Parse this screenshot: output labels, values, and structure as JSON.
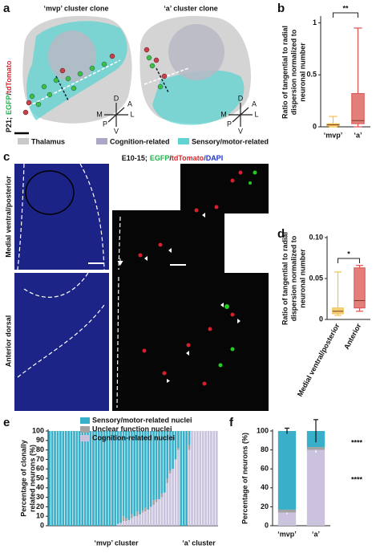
{
  "panels": {
    "a": {
      "letter": "a",
      "titles": [
        "‘mvp’ cluster clone",
        "‘a’ cluster clone"
      ],
      "stain": [
        "P21;",
        "EGFP",
        "/",
        "tdTomato"
      ],
      "compass": [
        "D",
        "A",
        "M",
        "L",
        "P",
        "V"
      ],
      "legend": [
        "Thalamus",
        "Cognition-related",
        "Sensory/motor-related"
      ]
    },
    "b": {
      "letter": "b"
    },
    "c": {
      "letter": "c",
      "stain": [
        "E10-15;",
        "EGFP",
        "/",
        "tdTomato",
        "/DAPI"
      ],
      "rows": [
        "Medial ventral/posterior",
        "Anterior dorsal"
      ]
    },
    "d": {
      "letter": "d"
    },
    "e": {
      "letter": "e"
    },
    "f": {
      "letter": "f"
    }
  },
  "chart_data": [
    {
      "type": "box",
      "y_label": [
        "Ratio of tangential to radial",
        "dispersion normalized to",
        "neuronal number"
      ],
      "categories": [
        "‘mvp’",
        "‘a’"
      ],
      "colors": [
        "#f2c14e",
        "#d9534f"
      ],
      "boxes": [
        {
          "min": 0,
          "q1": 0.01,
          "median": 0.02,
          "q3": 0.03,
          "max": 0.1
        },
        {
          "min": 0,
          "q1": 0.03,
          "median": 0.06,
          "q3": 0.32,
          "max": 0.95
        }
      ],
      "ylim": [
        0,
        1.05
      ],
      "yticks": [
        0,
        0.5,
        1
      ],
      "annotations": [
        {
          "text": "**"
        }
      ]
    },
    {
      "type": "box",
      "y_label": [
        "Ratio of tangential to radial",
        "dispersion normalized to",
        "neuronal number"
      ],
      "categories": [
        "Medial ventral/posterior",
        "Anterior"
      ],
      "colors": [
        "#f2c14e",
        "#d9534f"
      ],
      "boxes": [
        {
          "min": 0.005,
          "q1": 0.007,
          "median": 0.01,
          "q3": 0.014,
          "max": 0.058
        },
        {
          "min": 0.01,
          "q1": 0.014,
          "median": 0.023,
          "q3": 0.063,
          "max": 0.066
        }
      ],
      "ylim": [
        0,
        0.1
      ],
      "yticks": [
        0,
        0.05,
        {
          "value": 0.1,
          "label": "0.10"
        }
      ],
      "annotations": [
        {
          "text": "*"
        }
      ]
    },
    {
      "type": "stacked_bar",
      "y_label": [
        "Percentage of clonally",
        "related neurons (%)"
      ],
      "categories": [
        null,
        null,
        null,
        null,
        null,
        null,
        null,
        null,
        null,
        null,
        null,
        null,
        null,
        null,
        null,
        null,
        null,
        null,
        null,
        null,
        null,
        null,
        null,
        null,
        null,
        null,
        null,
        null,
        null,
        null,
        null,
        null,
        null,
        null,
        null,
        null,
        null,
        null,
        null,
        null,
        null,
        null,
        null,
        null,
        null,
        null,
        null,
        null,
        null,
        null,
        null,
        null,
        null,
        null,
        null,
        null,
        null,
        null,
        null,
        null,
        null,
        null
      ],
      "series": [
        {
          "name": "Cognition-related nuclei",
          "color": "#cbc3de",
          "values": [
            0,
            0,
            0,
            0,
            0,
            0,
            0,
            0,
            0,
            0,
            0,
            0,
            0,
            0,
            0,
            0,
            0,
            0,
            0,
            0,
            0,
            0,
            0,
            0,
            0,
            2,
            3,
            5,
            5,
            6,
            8,
            10,
            10,
            12,
            14,
            15,
            17,
            20,
            22,
            25,
            28,
            30,
            35,
            45,
            55,
            60,
            70,
            80,
            0,
            0,
            0,
            80,
            100,
            100,
            100,
            100,
            100,
            100,
            100,
            100,
            100,
            100
          ]
        },
        {
          "name": "Unclear function nuclei",
          "color": "#a3a3a3",
          "values": [
            0,
            0,
            0,
            0,
            0,
            0,
            0,
            0,
            0,
            0,
            0,
            0,
            0,
            0,
            0,
            0,
            0,
            0,
            0,
            0,
            0,
            0,
            0,
            0,
            0,
            0,
            0,
            5,
            3,
            0,
            4,
            0,
            5,
            0,
            2,
            4,
            0,
            0,
            5,
            3,
            0,
            4,
            0,
            5,
            3,
            0,
            0,
            2,
            0,
            0,
            0,
            5,
            0,
            0,
            0,
            0,
            0,
            0,
            0,
            0,
            0,
            0
          ]
        },
        {
          "name": "Sensory/motor-related nuclei",
          "color": "#3aafc9",
          "values": [
            100,
            100,
            100,
            100,
            100,
            100,
            100,
            100,
            100,
            100,
            100,
            100,
            100,
            100,
            100,
            100,
            100,
            100,
            100,
            100,
            100,
            100,
            100,
            100,
            100,
            98,
            97,
            90,
            92,
            94,
            88,
            90,
            85,
            88,
            84,
            81,
            83,
            80,
            73,
            72,
            72,
            66,
            65,
            50,
            42,
            40,
            30,
            18,
            100,
            100,
            100,
            15,
            0,
            0,
            0,
            0,
            0,
            0,
            0,
            0,
            0,
            0
          ]
        }
      ],
      "ylim": [
        0,
        100
      ],
      "yticks": [
        0,
        10,
        20,
        30,
        40,
        50,
        60,
        70,
        80,
        90,
        100
      ],
      "legend": "top",
      "annotations": [
        {
          "text": "‘mvp’ cluster"
        },
        {
          "text": "‘a’ cluster"
        }
      ]
    },
    {
      "type": "stacked_bar",
      "y_label": [
        "Percentage of neurons (%)"
      ],
      "categories": [
        "‘mvp’",
        "‘a’"
      ],
      "series": [
        {
          "color": "#cbc3de",
          "values": [
            14,
            80
          ],
          "errors": [
            2,
            3
          ]
        },
        {
          "color": "#a3a3a3",
          "values": [
            3,
            3
          ]
        },
        {
          "color": "#3aafc9",
          "values": [
            83,
            17
          ],
          "errors": [
            3,
            12
          ]
        }
      ],
      "ylim": [
        0,
        100
      ],
      "yticks": [
        0,
        20,
        40,
        60,
        80,
        100
      ],
      "annotations": [
        {
          "text": "****",
          "color": "#3aafc9"
        },
        {
          "text": "****",
          "color": "#cbc3de"
        }
      ]
    }
  ]
}
